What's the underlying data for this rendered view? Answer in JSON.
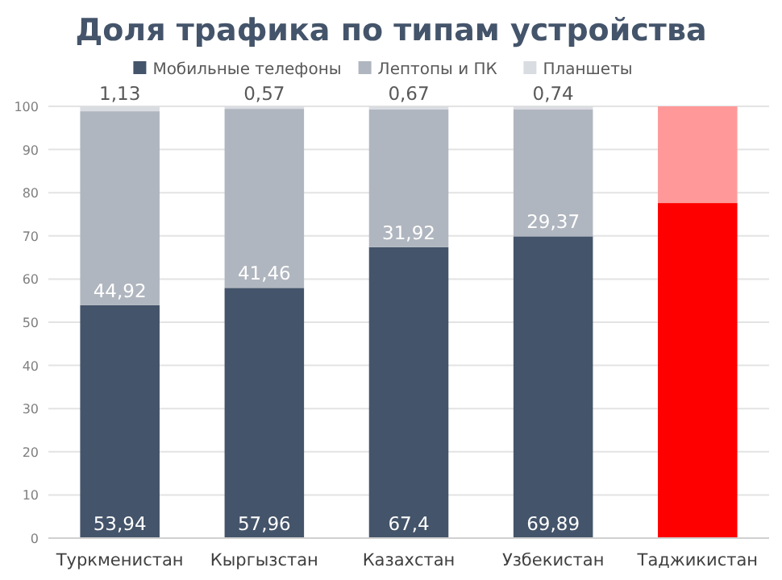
{
  "chart_data": {
    "type": "bar",
    "stacked": true,
    "title": "Доля трафика по типам устройства",
    "categories": [
      "Туркменистан",
      "Кыргызстан",
      "Казахстан",
      "Узбекистан",
      "Таджикистан"
    ],
    "series": [
      {
        "name": "Мобильные телефоны",
        "color": "#44546a",
        "colors": [
          "#44546a",
          "#44546a",
          "#44546a",
          "#44546a",
          "#ff0000"
        ],
        "values": [
          53.94,
          57.96,
          67.4,
          69.89,
          77.6
        ],
        "value_labels": [
          "53,94",
          "57,96",
          "67,4",
          "69,89",
          null
        ]
      },
      {
        "name": "Лептопы и ПК",
        "color": "#b0b6bf",
        "colors": [
          "#b0b6bf",
          "#b0b6bf",
          "#b0b6bf",
          "#b0b6bf",
          "#ff9999"
        ],
        "values": [
          44.92,
          41.46,
          31.92,
          29.37,
          22.4
        ],
        "value_labels": [
          "44,92",
          "41,46",
          "31,92",
          "29,37",
          null
        ]
      },
      {
        "name": "Планшеты",
        "color": "#d9dce1",
        "values": [
          1.13,
          0.57,
          0.67,
          0.74,
          null
        ],
        "value_labels": [
          "1,13",
          "0,57",
          "0,67",
          "0,74",
          null
        ]
      }
    ],
    "ylim": [
      0,
      100
    ],
    "yticks": [
      0,
      10,
      20,
      30,
      40,
      50,
      60,
      70,
      80,
      90,
      100
    ],
    "grid": "y",
    "legend": "top"
  }
}
